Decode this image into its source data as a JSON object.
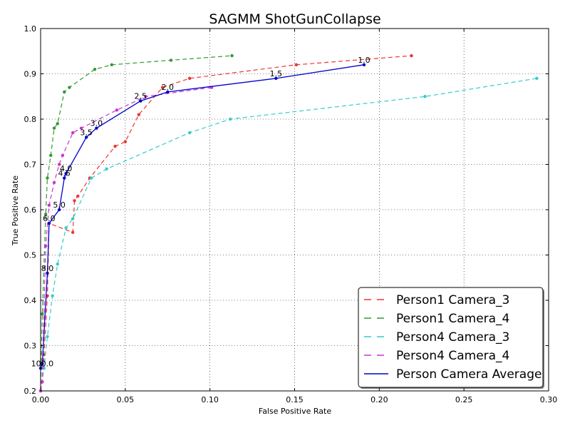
{
  "chart_data": {
    "type": "line",
    "title": "SAGMM ShotGunCollapse",
    "xlabel": "False Positive Rate",
    "ylabel": "True Positive Rate",
    "xlim": [
      0.0,
      0.3
    ],
    "ylim": [
      0.2,
      1.0
    ],
    "xticks": [
      "0.00",
      "0.05",
      "0.10",
      "0.15",
      "0.20",
      "0.25",
      "0.30"
    ],
    "yticks": [
      "0.2",
      "0.3",
      "0.4",
      "0.5",
      "0.6",
      "0.7",
      "0.8",
      "0.9",
      "1.0"
    ],
    "grid": true,
    "legend_position": "lower-right",
    "series": [
      {
        "name": "Person1 Camera_3",
        "color": "#ee3333",
        "style": "dashed",
        "markers": true,
        "x": [
          0.0,
          0.001,
          0.002,
          0.004,
          0.005,
          0.019,
          0.02,
          0.022,
          0.029,
          0.044,
          0.05,
          0.058,
          0.072,
          0.088,
          0.151,
          0.219
        ],
        "y": [
          0.2,
          0.22,
          0.28,
          0.41,
          0.57,
          0.55,
          0.62,
          0.63,
          0.67,
          0.74,
          0.75,
          0.81,
          0.87,
          0.89,
          0.92,
          0.94
        ]
      },
      {
        "name": "Person1 Camera_4",
        "color": "#339933",
        "style": "dashed",
        "markers": true,
        "x": [
          0.0,
          0.001,
          0.003,
          0.004,
          0.006,
          0.008,
          0.01,
          0.014,
          0.017,
          0.032,
          0.042,
          0.077,
          0.113
        ],
        "y": [
          0.2,
          0.37,
          0.59,
          0.67,
          0.72,
          0.78,
          0.79,
          0.86,
          0.87,
          0.91,
          0.92,
          0.93,
          0.94
        ]
      },
      {
        "name": "Person4 Camera_3",
        "color": "#33cccc",
        "style": "dashed",
        "markers": true,
        "x": [
          0.0,
          0.002,
          0.004,
          0.007,
          0.01,
          0.015,
          0.019,
          0.03,
          0.039,
          0.088,
          0.112,
          0.227,
          0.293
        ],
        "y": [
          0.2,
          0.25,
          0.32,
          0.41,
          0.48,
          0.56,
          0.58,
          0.67,
          0.69,
          0.77,
          0.8,
          0.85,
          0.89
        ]
      },
      {
        "name": "Person4 Camera_4",
        "color": "#cc33cc",
        "style": "dashed",
        "markers": true,
        "x": [
          0.0,
          0.001,
          0.003,
          0.005,
          0.008,
          0.011,
          0.013,
          0.019,
          0.024,
          0.045,
          0.062,
          0.101
        ],
        "y": [
          0.2,
          0.22,
          0.52,
          0.61,
          0.66,
          0.7,
          0.72,
          0.77,
          0.78,
          0.82,
          0.85,
          0.87
        ]
      },
      {
        "name": "Person Camera Average",
        "color": "#0000cc",
        "style": "solid",
        "markers": true,
        "x": [
          0.0,
          0.001,
          0.004,
          0.005,
          0.011,
          0.014,
          0.015,
          0.027,
          0.033,
          0.059,
          0.075,
          0.139,
          0.191
        ],
        "y": [
          0.25,
          0.26,
          0.46,
          0.57,
          0.6,
          0.67,
          0.68,
          0.76,
          0.78,
          0.84,
          0.86,
          0.89,
          0.92
        ]
      }
    ],
    "point_labels": [
      {
        "text": "100.0",
        "x": 0.001,
        "y": 0.25
      },
      {
        "text": "8.0",
        "x": 0.004,
        "y": 0.46
      },
      {
        "text": "6.0",
        "x": 0.005,
        "y": 0.57
      },
      {
        "text": "5.0",
        "x": 0.011,
        "y": 0.6
      },
      {
        "text": "4.5",
        "x": 0.014,
        "y": 0.67
      },
      {
        "text": "4.0",
        "x": 0.015,
        "y": 0.68
      },
      {
        "text": "3.5",
        "x": 0.027,
        "y": 0.76
      },
      {
        "text": "3.0",
        "x": 0.033,
        "y": 0.78
      },
      {
        "text": "2.5",
        "x": 0.059,
        "y": 0.84
      },
      {
        "text": "2.0",
        "x": 0.075,
        "y": 0.86
      },
      {
        "text": "1.5",
        "x": 0.139,
        "y": 0.89
      },
      {
        "text": "1.0",
        "x": 0.191,
        "y": 0.92
      }
    ]
  }
}
